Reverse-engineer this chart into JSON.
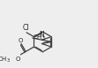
{
  "bg_color": "#eeeeee",
  "line_color": "#444444",
  "line_width": 0.9,
  "text_color": "#222222",
  "font_size": 5.5,
  "fig_width": 1.11,
  "fig_height": 0.77,
  "dpi": 100,
  "xlim": [
    -2.2,
    5.5
  ],
  "ylim": [
    -1.8,
    3.8
  ]
}
